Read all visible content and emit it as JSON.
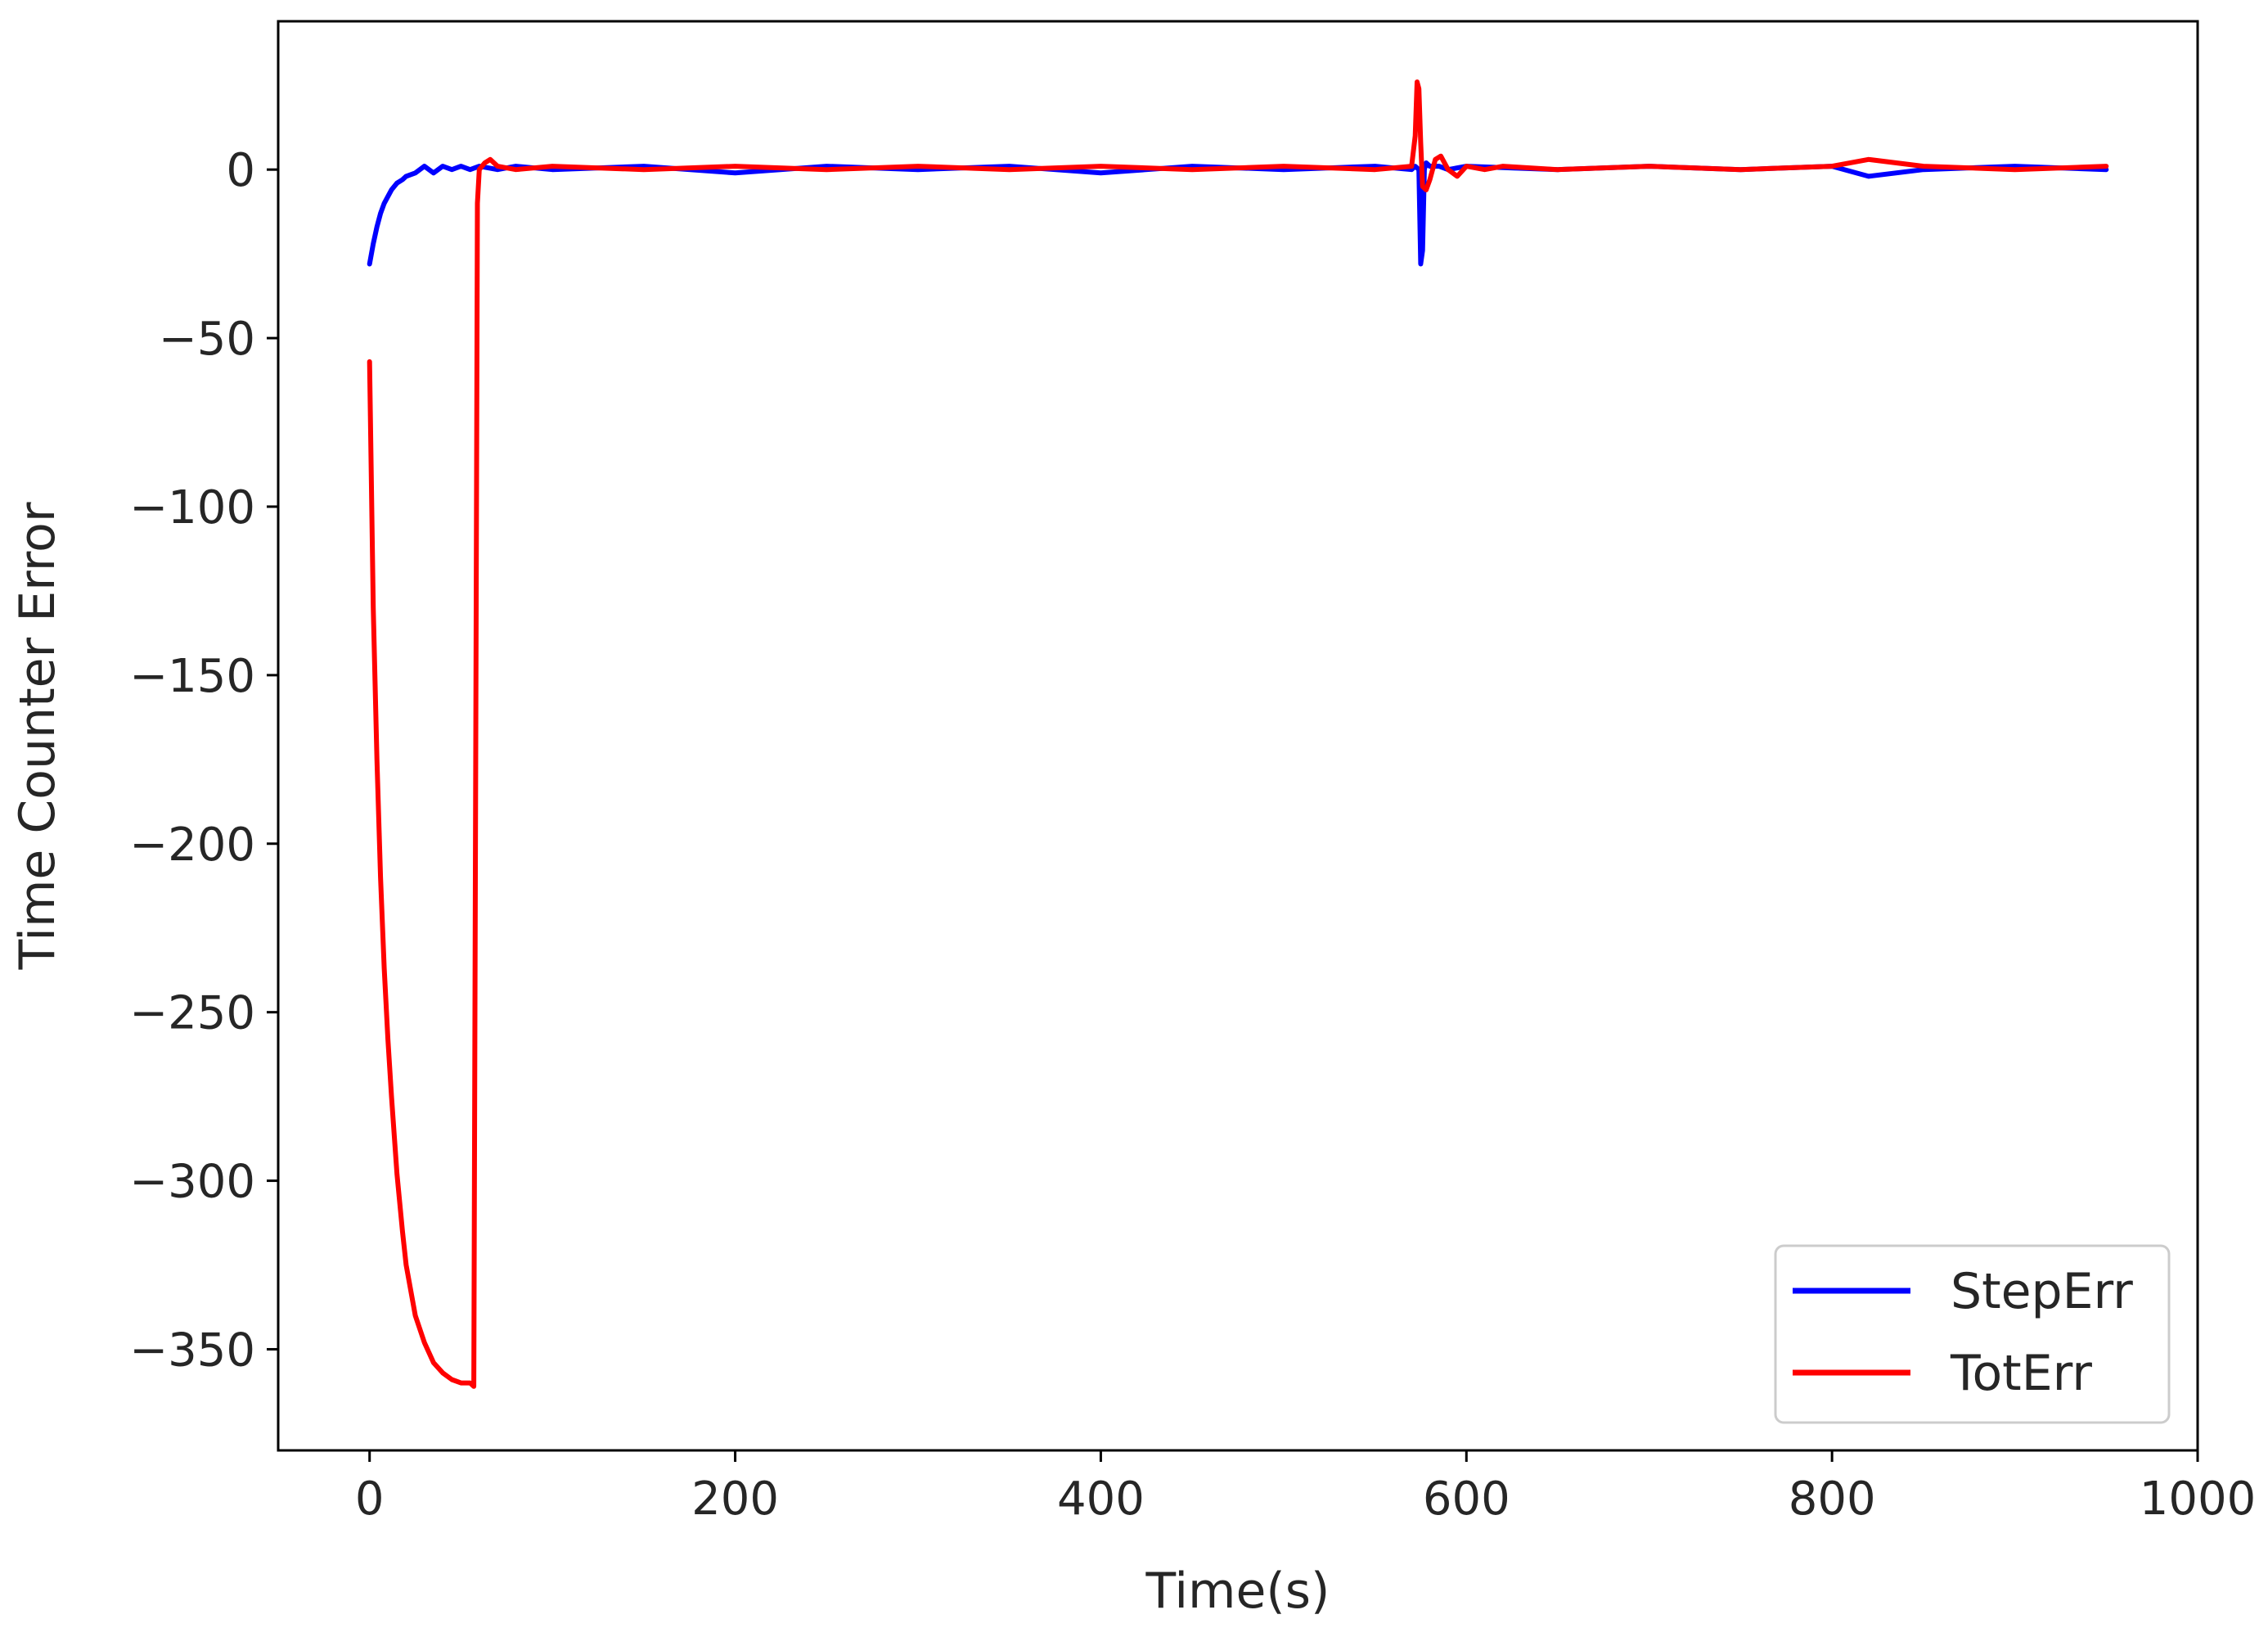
{
  "chart_data": {
    "type": "line",
    "title": "",
    "xlabel": "Time(s)",
    "ylabel": "Time Counter Error",
    "xlim": [
      -50,
      1000
    ],
    "ylim": [
      -380,
      44
    ],
    "xticks": [
      0,
      200,
      400,
      600,
      800,
      1000
    ],
    "xtick_labels": [
      "0",
      "200",
      "400",
      "600",
      "800",
      "1000"
    ],
    "yticks": [
      0,
      -50,
      -100,
      -150,
      -200,
      -250,
      -300,
      -350
    ],
    "ytick_labels": [
      "0",
      "−50",
      "−100",
      "−150",
      "−200",
      "−250",
      "−300",
      "−350"
    ],
    "grid": false,
    "legend": "lower-right",
    "series": [
      {
        "name": "StepErr",
        "color": "#0000ff",
        "x": [
          0,
          2,
          4,
          6,
          8,
          10,
          12,
          15,
          18,
          20,
          25,
          30,
          35,
          40,
          45,
          50,
          55,
          60,
          70,
          80,
          100,
          150,
          200,
          250,
          300,
          350,
          400,
          450,
          500,
          550,
          570,
          572,
          574,
          575,
          576,
          577,
          578,
          580,
          585,
          590,
          600,
          650,
          700,
          750,
          800,
          820,
          850,
          900,
          950
        ],
        "y": [
          -28,
          -22,
          -17,
          -13,
          -10,
          -8,
          -6,
          -4,
          -3,
          -2,
          -1,
          1,
          -1,
          1,
          0,
          1,
          0,
          1,
          0,
          1,
          0,
          1,
          -1,
          1,
          0,
          1,
          -1,
          1,
          0,
          1,
          0,
          1,
          0,
          -28,
          -24,
          0,
          2,
          1,
          1,
          0,
          1,
          0,
          1,
          0,
          1,
          -2,
          0,
          1,
          0
        ]
      },
      {
        "name": "TotErr",
        "color": "#ff0000",
        "x": [
          0,
          2,
          4,
          6,
          8,
          10,
          12,
          15,
          18,
          20,
          25,
          30,
          35,
          40,
          45,
          50,
          55,
          57,
          59,
          60,
          63,
          66,
          70,
          80,
          100,
          150,
          200,
          250,
          300,
          350,
          400,
          450,
          500,
          550,
          570,
          572,
          573,
          574,
          575,
          576,
          578,
          580,
          583,
          586,
          590,
          595,
          600,
          610,
          620,
          650,
          700,
          750,
          800,
          820,
          850,
          900,
          950
        ],
        "y": [
          -57,
          -130,
          -175,
          -210,
          -237,
          -258,
          -275,
          -298,
          -315,
          -325,
          -340,
          -348,
          -354,
          -357,
          -359,
          -360,
          -360,
          -361,
          -10,
          0,
          2,
          3,
          1,
          0,
          1,
          0,
          1,
          0,
          1,
          0,
          1,
          0,
          1,
          0,
          1,
          10,
          26,
          24,
          8,
          -5,
          -6,
          -3,
          3,
          4,
          0,
          -2,
          1,
          0,
          1,
          0,
          1,
          0,
          1,
          3,
          1,
          0,
          1
        ]
      }
    ]
  }
}
